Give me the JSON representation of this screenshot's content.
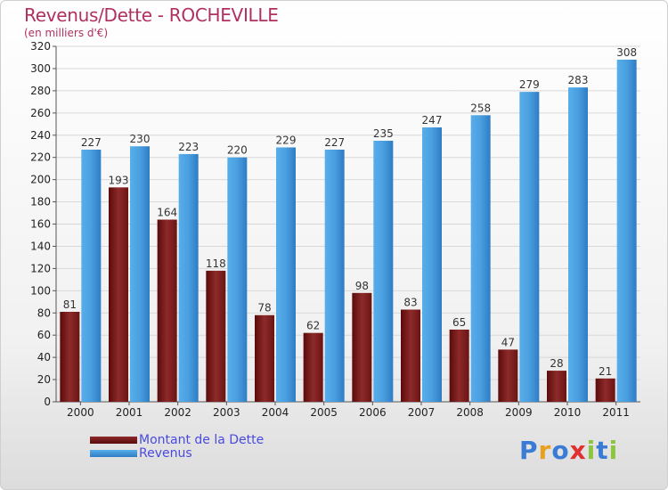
{
  "header": {
    "title": "Revenus/Dette - ROCHEVILLE",
    "subtitle": "(en milliers d'€)"
  },
  "colors": {
    "title": "#b03060",
    "dette": "#7a1a1a",
    "revenus": "#3d8fd6",
    "legend_text": "#4a4ae0"
  },
  "chart_data": {
    "type": "bar",
    "title": "Revenus/Dette - ROCHEVILLE",
    "subtitle": "(en milliers d'€)",
    "categories": [
      "2000",
      "2001",
      "2002",
      "2003",
      "2004",
      "2005",
      "2006",
      "2007",
      "2008",
      "2009",
      "2010",
      "2011"
    ],
    "series": [
      {
        "name": "Montant de la Dette",
        "values": [
          81,
          193,
          164,
          118,
          78,
          62,
          98,
          83,
          65,
          47,
          28,
          21
        ]
      },
      {
        "name": "Revenus",
        "values": [
          227,
          230,
          223,
          220,
          229,
          227,
          235,
          247,
          258,
          279,
          283,
          308
        ]
      }
    ],
    "ylim": [
      0,
      320
    ],
    "yticks": [
      0,
      20,
      40,
      60,
      80,
      100,
      120,
      140,
      160,
      180,
      200,
      220,
      240,
      260,
      280,
      300,
      320
    ],
    "grid": true,
    "legend": "bottom-left"
  },
  "legend": {
    "items": [
      {
        "label": "Montant de la Dette"
      },
      {
        "label": "Revenus"
      }
    ]
  },
  "logo": {
    "letters": [
      {
        "ch": "P",
        "color": "#3a7bd5"
      },
      {
        "ch": "r",
        "color": "#e8a020"
      },
      {
        "ch": "o",
        "color": "#3a7bd5"
      },
      {
        "ch": "x",
        "color": "#e03030"
      },
      {
        "ch": "i",
        "color": "#8cc63f"
      },
      {
        "ch": "t",
        "color": "#3a7bd5"
      },
      {
        "ch": "i",
        "color": "#8cc63f"
      }
    ]
  }
}
